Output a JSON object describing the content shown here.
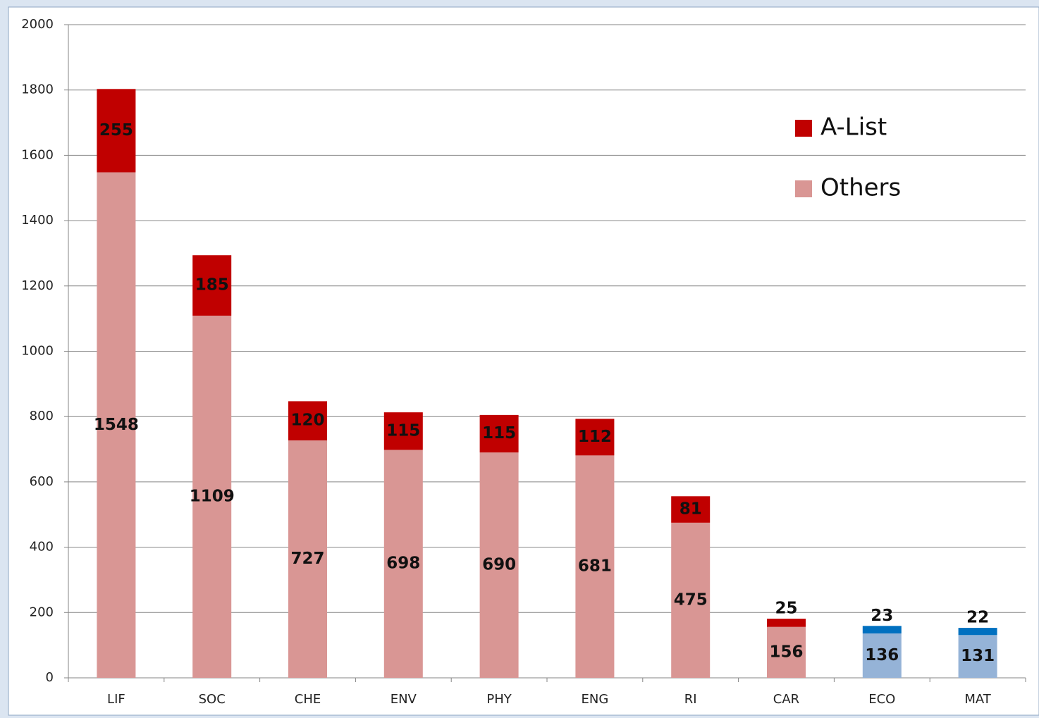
{
  "chart_data": {
    "type": "stacked_bar",
    "categories": [
      "LIF",
      "SOC",
      "CHE",
      "ENV",
      "PHY",
      "ENG",
      "RI",
      "CAR",
      "ECO",
      "MAT"
    ],
    "series": [
      {
        "name": "Others",
        "color": "#d99694",
        "colors": [
          "#d99694",
          "#d99694",
          "#d99694",
          "#d99694",
          "#d99694",
          "#d99694",
          "#d99694",
          "#d99694",
          "#95b3d7",
          "#95b3d7"
        ],
        "values": [
          1548,
          1109,
          727,
          698,
          690,
          681,
          475,
          156,
          136,
          131
        ]
      },
      {
        "name": "A-List",
        "color": "#c00000",
        "colors": [
          "#c00000",
          "#c00000",
          "#c00000",
          "#c00000",
          "#c00000",
          "#c00000",
          "#c00000",
          "#c00000",
          "#0070c0",
          "#0070c0"
        ],
        "values": [
          255,
          185,
          120,
          115,
          115,
          112,
          81,
          25,
          23,
          22
        ]
      }
    ],
    "ylim": [
      0,
      2000
    ],
    "yticks": [
      0,
      200,
      400,
      600,
      800,
      1000,
      1200,
      1400,
      1600,
      1800,
      2000
    ],
    "grid": true,
    "legend": "upper right"
  }
}
